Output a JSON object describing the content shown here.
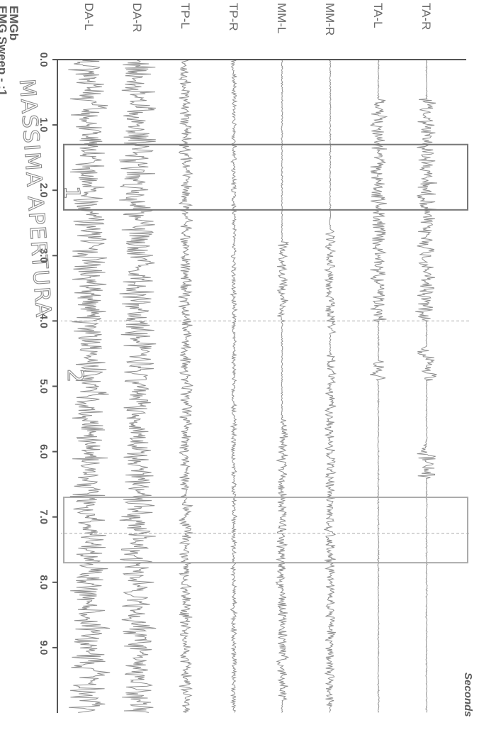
{
  "header": {
    "line1": "EMGb",
    "line2": "EMG Sweep - :1"
  },
  "annotation": {
    "handwritten": "MASSIMA APERTURA",
    "marker_1": "1",
    "marker_2": "2"
  },
  "chart_data": {
    "type": "line",
    "orientation": "rotated-90",
    "title": "",
    "xlabel": "Seconds",
    "xlim": [
      0,
      10
    ],
    "x_ticks": [
      "0.0",
      "1.0",
      "2.0",
      "3.0",
      "4.0",
      "5.0",
      "6.0",
      "7.0",
      "8.0",
      "9.0"
    ],
    "grid": false,
    "colors": {
      "trace": "#8f8f8f",
      "axis": "#555555",
      "box": "#777777",
      "box_light": "#aaaaaa"
    },
    "series": [
      {
        "name": "TA-R",
        "amplitude": 0.55,
        "bursts": [
          [
            0.6,
            4.0
          ],
          [
            4.4,
            4.9
          ],
          [
            5.9,
            6.4
          ]
        ]
      },
      {
        "name": "TA-L",
        "amplitude": 0.45,
        "bursts": [
          [
            0.6,
            4.0
          ],
          [
            4.6,
            4.9
          ]
        ]
      },
      {
        "name": "MM-R",
        "amplitude": 0.3,
        "bursts": [
          [
            2.6,
            4.2
          ],
          [
            4.5,
            9.9
          ]
        ]
      },
      {
        "name": "MM-L",
        "amplitude": 0.3,
        "bursts": [
          [
            2.8,
            4.0
          ],
          [
            5.5,
            9.8
          ]
        ]
      },
      {
        "name": "TP-R",
        "amplitude": 0.15,
        "bursts": [
          [
            0.0,
            10.0
          ]
        ]
      },
      {
        "name": "TP-L",
        "amplitude": 0.35,
        "bursts": [
          [
            0.0,
            10.0
          ]
        ]
      },
      {
        "name": "DA-R",
        "amplitude": 0.95,
        "bursts": [
          [
            0.0,
            10.0
          ]
        ]
      },
      {
        "name": "DA-L",
        "amplitude": 1.0,
        "bursts": [
          [
            0.0,
            10.0
          ]
        ]
      }
    ],
    "selection_boxes": [
      {
        "label": "1",
        "x_range": [
          1.3,
          2.3
        ]
      },
      {
        "label": "",
        "x_range": [
          6.7,
          7.7
        ]
      }
    ],
    "dashed_markers": [
      4.0,
      7.25
    ]
  }
}
